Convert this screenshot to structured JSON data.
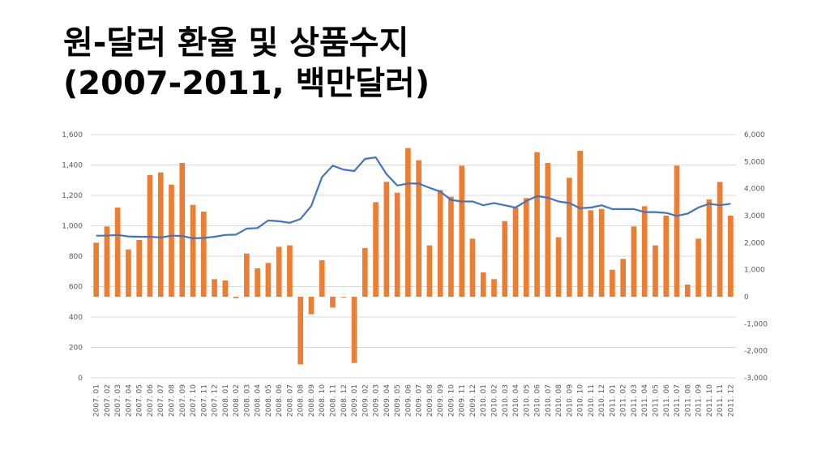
{
  "title_line1": "원-달러 환율 및 상품수지",
  "title_line2": "(2007-2011, 백만달러)",
  "colors": {
    "bar": "#ED7D31",
    "line": "#4472C4",
    "grid": "#D9D9D9",
    "tick": "#595959"
  },
  "chart_data": {
    "type": "bar",
    "title": "",
    "xlabel": "",
    "ylabel": "",
    "categories": [
      "2007. 01",
      "2007. 02",
      "2007. 03",
      "2007. 04",
      "2007. 05",
      "2007. 06",
      "2007. 07",
      "2007. 08",
      "2007. 09",
      "2007. 10",
      "2007. 11",
      "2007. 12",
      "2008. 01",
      "2008. 02",
      "2008. 03",
      "2008. 04",
      "2008. 05",
      "2008. 06",
      "2008. 07",
      "2008. 08",
      "2008. 09",
      "2008. 10",
      "2008. 11",
      "2008. 12",
      "2009. 01",
      "2009. 02",
      "2009. 03",
      "2009. 04",
      "2009. 05",
      "2009. 06",
      "2009. 07",
      "2009. 08",
      "2009. 09",
      "2009. 10",
      "2009. 11",
      "2009. 12",
      "2010. 01",
      "2010. 02",
      "2010. 03",
      "2010. 04",
      "2010. 05",
      "2010. 06",
      "2010. 07",
      "2010. 08",
      "2010. 09",
      "2010. 10",
      "2010. 11",
      "2010. 12",
      "2011. 01",
      "2011. 02",
      "2011. 03",
      "2011. 04",
      "2011. 05",
      "2011. 06",
      "2011. 07",
      "2011. 08",
      "2011. 09",
      "2011. 10",
      "2011. 11",
      "2011. 12"
    ],
    "y_left": {
      "min": 0,
      "max": 1600,
      "ticks": [
        0,
        200,
        400,
        600,
        800,
        1000,
        1200,
        1400,
        1600
      ],
      "tick_labels": [
        "0",
        "200",
        "400",
        "600",
        "800",
        "1,000",
        "1,200",
        "1,400",
        "1,600"
      ]
    },
    "y_right": {
      "min": -3000,
      "max": 6000,
      "ticks": [
        -3000,
        -2000,
        -1000,
        0,
        1000,
        2000,
        3000,
        4000,
        5000,
        6000
      ],
      "tick_labels": [
        "-3,000",
        "-2,000",
        "-1,000",
        "0",
        "1,000",
        "2,000",
        "3,000",
        "4,000",
        "5,000",
        "6,000"
      ]
    },
    "series": [
      {
        "type": "bar",
        "axis": "right",
        "values": [
          2000,
          2600,
          3300,
          1750,
          2100,
          4500,
          4600,
          4150,
          4950,
          3400,
          3150,
          650,
          600,
          -50,
          1600,
          1050,
          1250,
          1850,
          1900,
          -2500,
          -650,
          1350,
          -400,
          -20,
          -2450,
          1800,
          3500,
          4250,
          3850,
          5500,
          5050,
          1900,
          3950,
          3700,
          4850,
          2150,
          900,
          650,
          2800,
          3300,
          3650,
          5350,
          4950,
          2200,
          4400,
          5400,
          3200,
          3250,
          1000,
          1400,
          2600,
          3350,
          1900,
          3000,
          4850,
          450,
          2150,
          3600,
          4250,
          3000
        ]
      },
      {
        "type": "line",
        "axis": "left",
        "values": [
          935,
          935,
          940,
          930,
          928,
          928,
          923,
          935,
          933,
          918,
          920,
          928,
          940,
          942,
          982,
          985,
          1035,
          1030,
          1020,
          1045,
          1130,
          1320,
          1395,
          1370,
          1360,
          1440,
          1450,
          1340,
          1265,
          1278,
          1278,
          1250,
          1225,
          1170,
          1160,
          1160,
          1135,
          1150,
          1135,
          1120,
          1163,
          1195,
          1185,
          1160,
          1150,
          1115,
          1120,
          1135,
          1110,
          1110,
          1110,
          1090,
          1090,
          1085,
          1065,
          1080,
          1120,
          1145,
          1135,
          1145
        ]
      }
    ],
    "grid": true
  }
}
